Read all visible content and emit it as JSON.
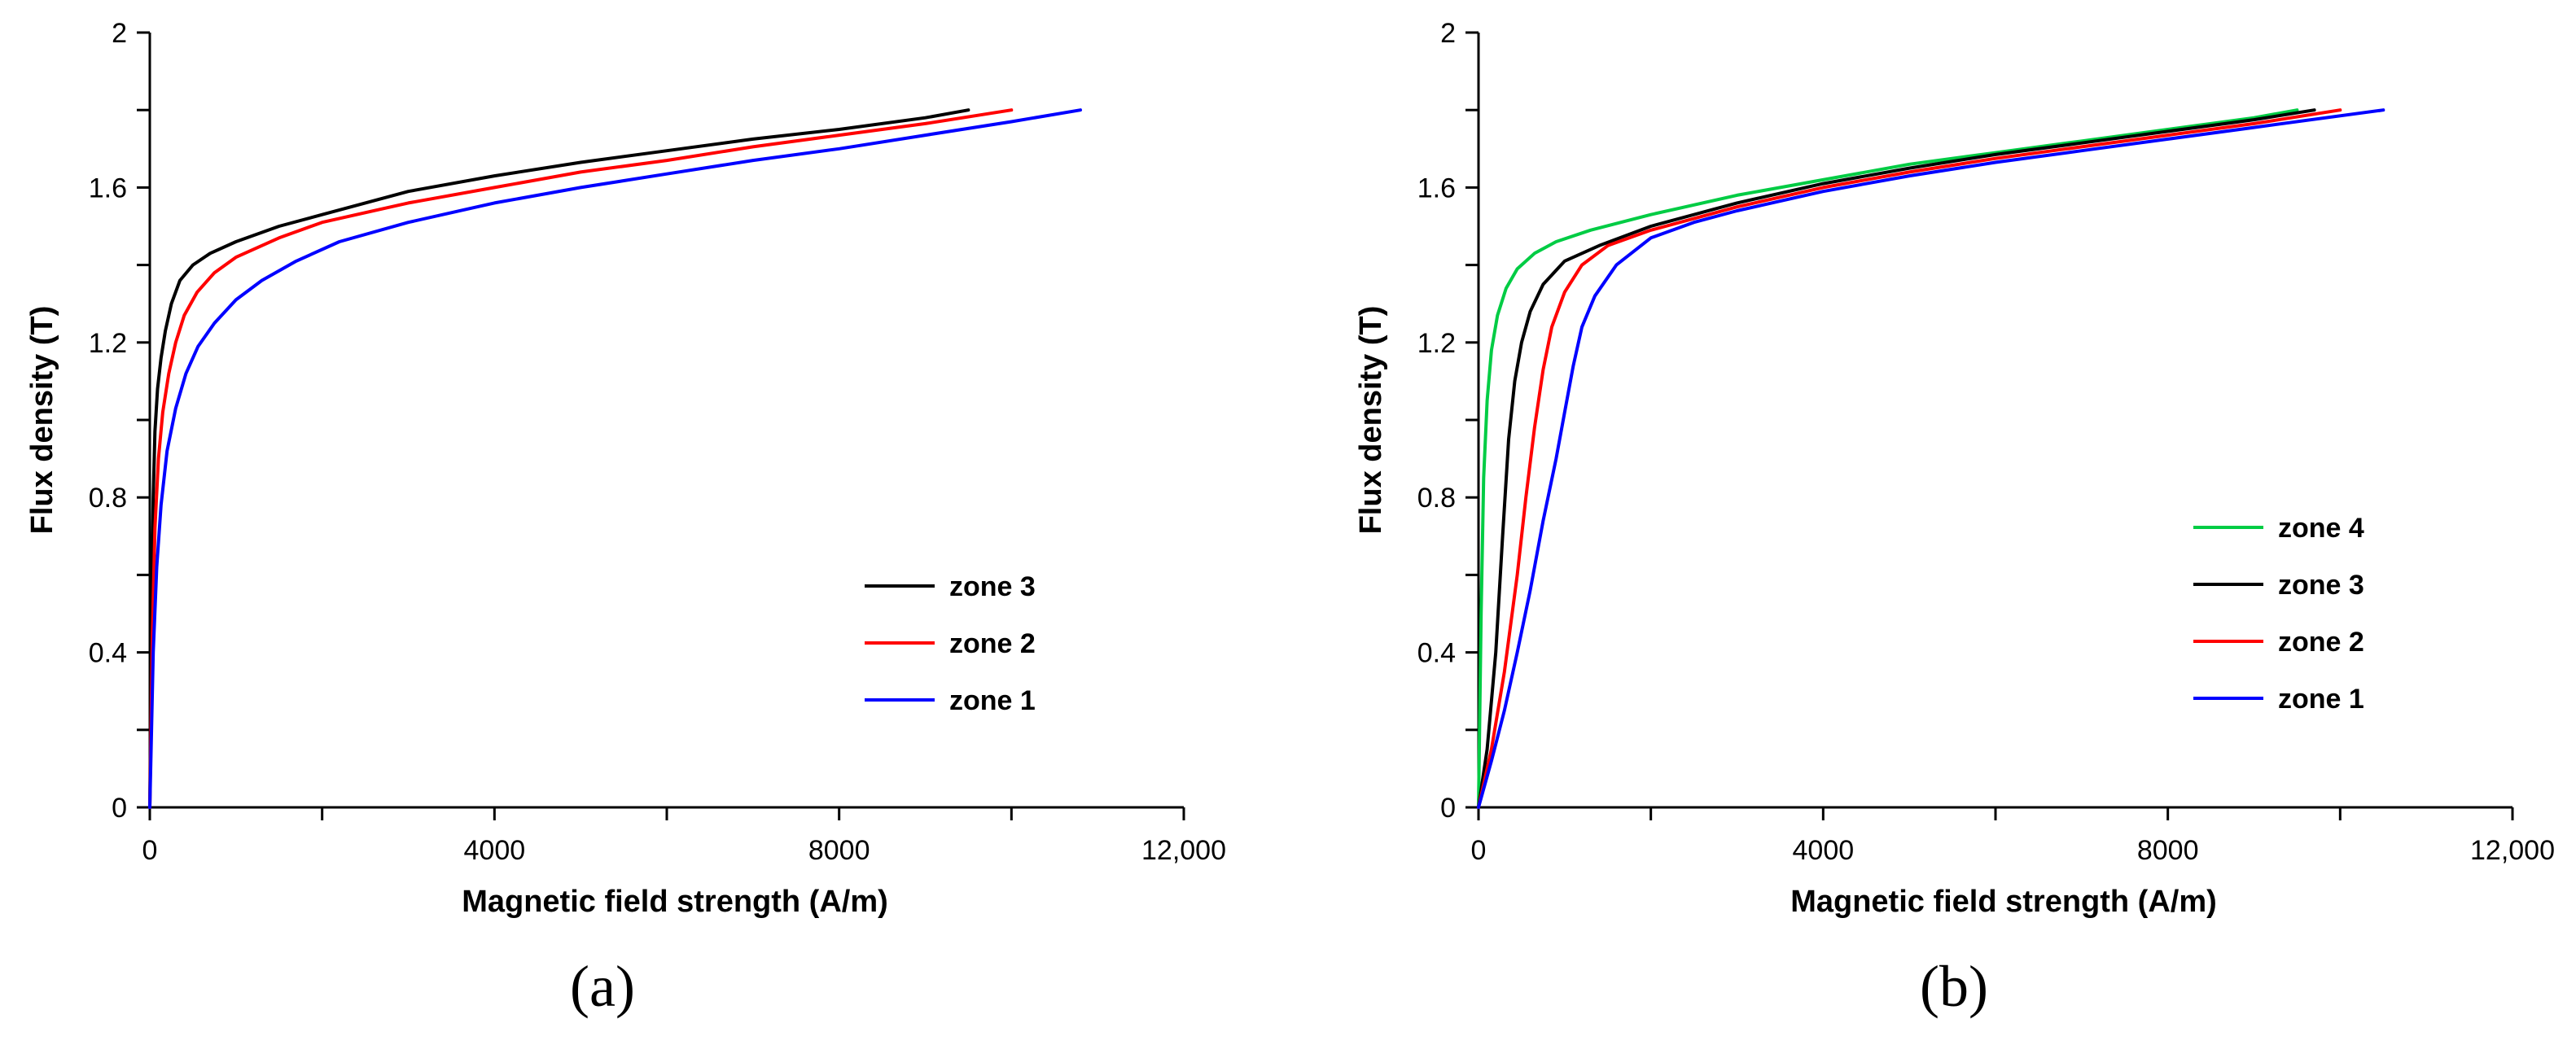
{
  "chart_data": [
    {
      "type": "line",
      "panel_label": "(a)",
      "xlabel": "Magnetic field strength (A/m)",
      "ylabel": "Flux density (T)",
      "xlim": [
        0,
        12000
      ],
      "ylim": [
        0,
        2
      ],
      "xticks": [
        0,
        4000,
        8000,
        12000
      ],
      "xtick_labels": [
        "0",
        "4000",
        "8000",
        "12,000"
      ],
      "yticks": [
        0,
        0.4,
        0.8,
        1.2,
        1.6,
        2
      ],
      "ytick_labels": [
        "0",
        "0.4",
        "0.8",
        "1.2",
        "1.6",
        "2"
      ],
      "legend_position": "center-right",
      "series": [
        {
          "name": "zone 3",
          "color": "#000000",
          "x": [
            0,
            20,
            40,
            60,
            90,
            130,
            180,
            250,
            350,
            500,
            700,
            1000,
            1500,
            2000,
            3000,
            4000,
            5000,
            6000,
            7000,
            8000,
            9000,
            9500
          ],
          "y": [
            0,
            0.5,
            0.8,
            0.97,
            1.08,
            1.16,
            1.23,
            1.3,
            1.36,
            1.4,
            1.43,
            1.46,
            1.5,
            1.53,
            1.59,
            1.63,
            1.665,
            1.695,
            1.725,
            1.75,
            1.78,
            1.8
          ]
        },
        {
          "name": "zone 2",
          "color": "#ff0000",
          "x": [
            0,
            30,
            60,
            100,
            150,
            220,
            300,
            400,
            550,
            750,
            1000,
            1500,
            2000,
            3000,
            4000,
            5000,
            6000,
            7000,
            8000,
            9000,
            10000
          ],
          "y": [
            0,
            0.45,
            0.72,
            0.9,
            1.02,
            1.12,
            1.2,
            1.27,
            1.33,
            1.38,
            1.42,
            1.47,
            1.51,
            1.56,
            1.6,
            1.64,
            1.67,
            1.705,
            1.735,
            1.765,
            1.8
          ]
        },
        {
          "name": "zone 1",
          "color": "#0000ff",
          "x": [
            0,
            40,
            80,
            130,
            200,
            300,
            420,
            560,
            750,
            1000,
            1300,
            1700,
            2200,
            3000,
            4000,
            5000,
            6000,
            7000,
            8000,
            9000,
            10000,
            10800
          ],
          "y": [
            0,
            0.4,
            0.62,
            0.78,
            0.92,
            1.03,
            1.12,
            1.19,
            1.25,
            1.31,
            1.36,
            1.41,
            1.46,
            1.51,
            1.56,
            1.6,
            1.635,
            1.67,
            1.7,
            1.735,
            1.77,
            1.8
          ]
        }
      ]
    },
    {
      "type": "line",
      "panel_label": "(b)",
      "xlabel": "Magnetic field strength (A/m)",
      "ylabel": "Flux density (T)",
      "xlim": [
        0,
        12000
      ],
      "ylim": [
        0,
        2
      ],
      "xticks": [
        0,
        4000,
        8000,
        12000
      ],
      "xtick_labels": [
        "0",
        "4000",
        "8000",
        "12,000"
      ],
      "yticks": [
        0,
        0.4,
        0.8,
        1.2,
        1.6,
        2
      ],
      "ytick_labels": [
        "0",
        "0.4",
        "0.8",
        "1.2",
        "1.6",
        "2"
      ],
      "legend_position": "center-right",
      "series": [
        {
          "name": "zone 4",
          "color": "#00cc44",
          "x": [
            0,
            30,
            60,
            100,
            150,
            220,
            320,
            450,
            650,
            900,
            1300,
            2000,
            3000,
            4000,
            5000,
            6000,
            7000,
            8000,
            9000,
            9500
          ],
          "y": [
            0,
            0.5,
            0.85,
            1.05,
            1.18,
            1.27,
            1.34,
            1.39,
            1.43,
            1.46,
            1.49,
            1.53,
            1.58,
            1.62,
            1.66,
            1.69,
            1.72,
            1.75,
            1.78,
            1.8
          ]
        },
        {
          "name": "zone 3",
          "color": "#000000",
          "x": [
            0,
            100,
            200,
            280,
            350,
            420,
            500,
            600,
            750,
            1000,
            1400,
            2000,
            3000,
            4000,
            5000,
            6000,
            7000,
            8000,
            9000,
            9700
          ],
          "y": [
            0,
            0.15,
            0.4,
            0.7,
            0.95,
            1.1,
            1.2,
            1.28,
            1.35,
            1.41,
            1.45,
            1.5,
            1.56,
            1.61,
            1.65,
            1.685,
            1.715,
            1.745,
            1.775,
            1.8
          ]
        },
        {
          "name": "zone 2",
          "color": "#ff0000",
          "x": [
            0,
            150,
            300,
            450,
            550,
            650,
            750,
            850,
            1000,
            1200,
            1500,
            2000,
            3000,
            4000,
            5000,
            6000,
            7000,
            8000,
            9000,
            10000
          ],
          "y": [
            0,
            0.15,
            0.35,
            0.6,
            0.8,
            0.98,
            1.13,
            1.24,
            1.33,
            1.4,
            1.45,
            1.49,
            1.55,
            1.6,
            1.64,
            1.675,
            1.705,
            1.735,
            1.765,
            1.8
          ]
        },
        {
          "name": "zone 1",
          "color": "#0000ff",
          "x": [
            0,
            150,
            300,
            450,
            600,
            750,
            900,
            1000,
            1100,
            1200,
            1350,
            1600,
            2000,
            2500,
            3000,
            4000,
            5000,
            6000,
            7000,
            8000,
            9000,
            10500
          ],
          "y": [
            0,
            0.12,
            0.25,
            0.4,
            0.56,
            0.74,
            0.9,
            1.02,
            1.14,
            1.24,
            1.32,
            1.4,
            1.47,
            1.51,
            1.54,
            1.59,
            1.63,
            1.665,
            1.695,
            1.725,
            1.755,
            1.8
          ]
        }
      ]
    }
  ]
}
